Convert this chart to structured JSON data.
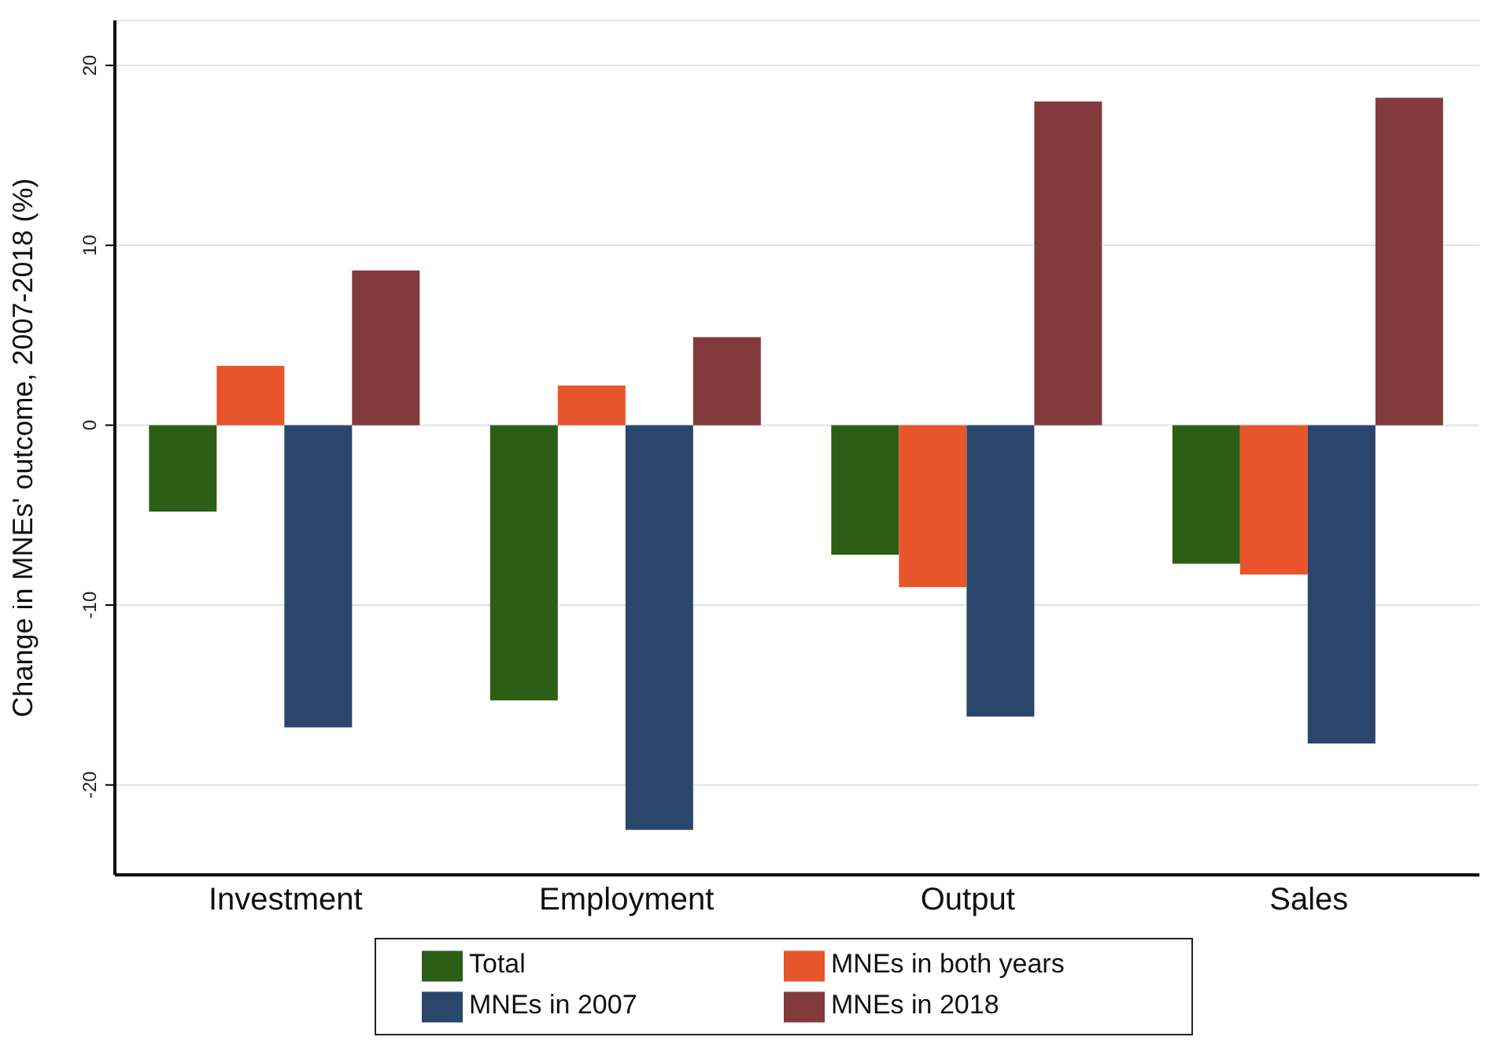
{
  "chart_data": {
    "type": "bar",
    "ylabel": "Change in MNEs' outcome, 2007-2018 (%)",
    "categories": [
      "Investment",
      "Employment",
      "Output",
      "Sales"
    ],
    "series": [
      {
        "name": "Total",
        "color": "#2d5e16",
        "values": [
          -4.8,
          -15.3,
          -7.2,
          -7.7
        ]
      },
      {
        "name": "MNEs in both years",
        "color": "#e8552a",
        "values": [
          3.3,
          2.2,
          -9.0,
          -8.3
        ]
      },
      {
        "name": "MNEs in 2007",
        "color": "#2a466b",
        "values": [
          -16.8,
          -22.5,
          -16.2,
          -17.7
        ]
      },
      {
        "name": "MNEs in 2018",
        "color": "#833a3d",
        "values": [
          8.6,
          4.9,
          18.0,
          18.2
        ]
      }
    ],
    "ylim": [
      -25,
      22.5
    ],
    "yticks": [
      -20,
      -10,
      0,
      10,
      20
    ],
    "grid": "y",
    "legend": "bottom"
  }
}
